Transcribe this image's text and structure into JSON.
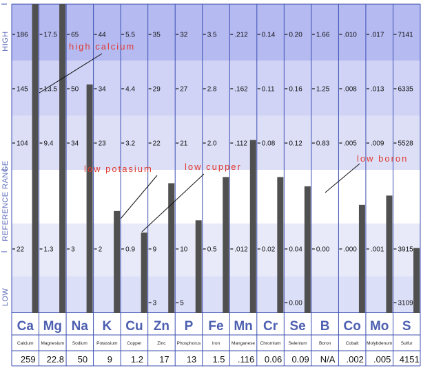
{
  "side_labels": {
    "high": "HIGH",
    "reference_range": "REFERENCE   RANGE",
    "low": "LOW"
  },
  "colors": {
    "band_high_dark": "#b8bcf2",
    "band_high_light": "#d8dbf8",
    "band_mid": "#e8eaf9",
    "band_ref": "#ffffff",
    "band_low": "#dcdff8",
    "bar": "#505050",
    "symbol": "#4d5fb0",
    "annotation": "#e03a2f",
    "grid": "#3d4fb2"
  },
  "chart_data": {
    "type": "bar",
    "columns": [
      {
        "symbol": "Ca",
        "name": "Calcium",
        "value": "259",
        "ticks": {
          "high": "186",
          "mid_high": "145",
          "ref_high": "104",
          "ref_low": "22",
          "low": ""
        }
      },
      {
        "symbol": "Mg",
        "name": "Magnesium",
        "value": "22.8",
        "ticks": {
          "high": "17.5",
          "mid_high": "13.5",
          "ref_high": "9.4",
          "ref_low": "1.3",
          "low": ""
        }
      },
      {
        "symbol": "Na",
        "name": "Sodium",
        "value": "50",
        "ticks": {
          "high": "65",
          "mid_high": "50",
          "ref_high": "34",
          "ref_low": "3",
          "low": ""
        }
      },
      {
        "symbol": "K",
        "name": "Potassium",
        "value": "9",
        "ticks": {
          "high": "44",
          "mid_high": "34",
          "ref_high": "23",
          "ref_low": "2",
          "low": ""
        }
      },
      {
        "symbol": "Cu",
        "name": "Copper",
        "value": "1.2",
        "ticks": {
          "high": "5.5",
          "mid_high": "4.4",
          "ref_high": "3.2",
          "ref_low": "0.9",
          "low": ""
        }
      },
      {
        "symbol": "Zn",
        "name": "Zinc",
        "value": "17",
        "ticks": {
          "high": "35",
          "mid_high": "29",
          "ref_high": "22",
          "ref_low": "9",
          "low": "3"
        }
      },
      {
        "symbol": "P",
        "name": "Phosphorus",
        "value": "13",
        "ticks": {
          "high": "32",
          "mid_high": "27",
          "ref_high": "21",
          "ref_low": "10",
          "low": "5"
        }
      },
      {
        "symbol": "Fe",
        "name": "Iron",
        "value": "1.5",
        "ticks": {
          "high": "3.5",
          "mid_high": "2.8",
          "ref_high": "2.0",
          "ref_low": "0.5",
          "low": ""
        }
      },
      {
        "symbol": "Mn",
        "name": "Manganese",
        "value": ".116",
        "ticks": {
          "high": ".212",
          "mid_high": ".162",
          "ref_high": ".112",
          "ref_low": ".012",
          "low": ""
        }
      },
      {
        "symbol": "Cr",
        "name": "Chromium",
        "value": "0.06",
        "ticks": {
          "high": "0.14",
          "mid_high": "0.11",
          "ref_high": "0.08",
          "ref_low": "0.02",
          "low": ""
        }
      },
      {
        "symbol": "Se",
        "name": "Selenium",
        "value": "0.09",
        "ticks": {
          "high": "0.20",
          "mid_high": "0.16",
          "ref_high": "0.12",
          "ref_low": "0.04",
          "low": "0.00"
        }
      },
      {
        "symbol": "B",
        "name": "Boron",
        "value": "N/A",
        "ticks": {
          "high": "1.66",
          "mid_high": "1.25",
          "ref_high": "0.83",
          "ref_low": "0.00",
          "low": ""
        }
      },
      {
        "symbol": "Co",
        "name": "Cobalt",
        "value": ".002",
        "ticks": {
          "high": ".010",
          "mid_high": ".008",
          "ref_high": ".005",
          "ref_low": ".000",
          "low": ""
        }
      },
      {
        "symbol": "Mo",
        "name": "Molybdenum",
        "value": ".005",
        "ticks": {
          "high": ".017",
          "mid_high": ".013",
          "ref_high": ".009",
          "ref_low": ".001",
          "low": ""
        }
      },
      {
        "symbol": "S",
        "name": "Sulfur",
        "value": "4151",
        "ticks": {
          "high": "7141",
          "mid_high": "6335",
          "ref_high": "5528",
          "ref_low": "3915",
          "low": "3109"
        }
      }
    ],
    "bar_level_fractions": [
      1.0,
      1.0,
      0.74,
      0.33,
      0.26,
      0.42,
      0.3,
      0.44,
      0.56,
      0.44,
      0.41,
      null,
      0.35,
      0.38,
      0.21
    ],
    "annotations": [
      {
        "text": "high calcium",
        "points_to": "Ca"
      },
      {
        "text": "low potasium",
        "points_to": "K"
      },
      {
        "text": "low cupper",
        "points_to": "Cu"
      },
      {
        "text": "low boron",
        "points_to": "B"
      }
    ]
  }
}
